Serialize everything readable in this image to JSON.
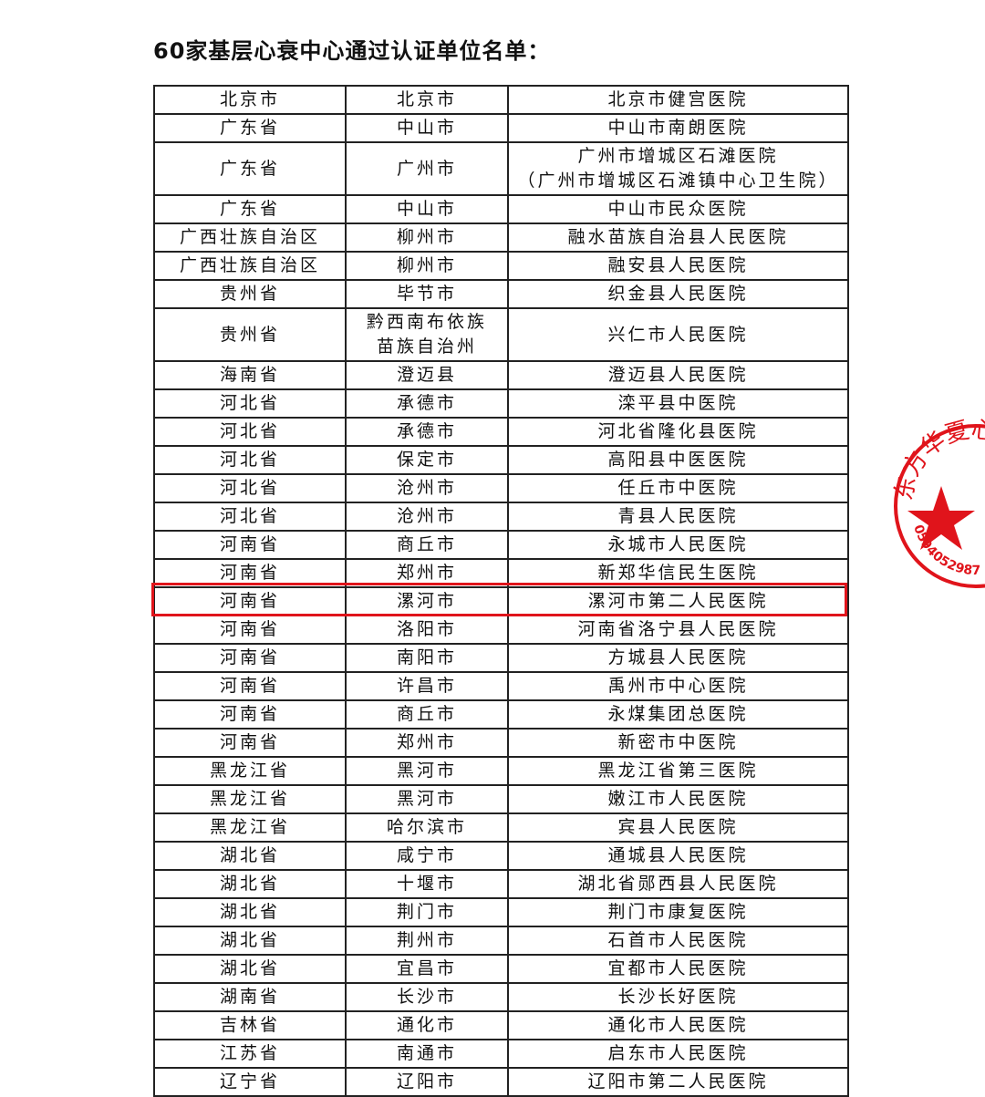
{
  "title": "60家基层心衰中心通过认证单位名单：",
  "highlight_color": "#e0141b",
  "highlighted_row": 16,
  "stamp": {
    "text": "东方华夏心血",
    "number": "0594052987",
    "color": "#e0141b",
    "icon": "star-icon"
  },
  "rows": [
    {
      "province": "北京市",
      "city": "北京市",
      "hospital": "北京市健宫医院"
    },
    {
      "province": "广东省",
      "city": "中山市",
      "hospital": "中山市南朗医院"
    },
    {
      "province": "广东省",
      "city": "广州市",
      "hospital": "广州市增城区石滩医院",
      "hospital_alt": "（广州市增城区石滩镇中心卫生院）"
    },
    {
      "province": "广东省",
      "city": "中山市",
      "hospital": "中山市民众医院"
    },
    {
      "province": "广西壮族自治区",
      "city": "柳州市",
      "hospital": "融水苗族自治县人民医院"
    },
    {
      "province": "广西壮族自治区",
      "city": "柳州市",
      "hospital": "融安县人民医院"
    },
    {
      "province": "贵州省",
      "city": "毕节市",
      "hospital": "织金县人民医院"
    },
    {
      "province": "贵州省",
      "city": "黔西南布依族",
      "city_line2": "苗族自治州",
      "hospital": "兴仁市人民医院"
    },
    {
      "province": "海南省",
      "city": "澄迈县",
      "hospital": "澄迈县人民医院"
    },
    {
      "province": "河北省",
      "city": "承德市",
      "hospital": "滦平县中医院"
    },
    {
      "province": "河北省",
      "city": "承德市",
      "hospital": "河北省隆化县医院"
    },
    {
      "province": "河北省",
      "city": "保定市",
      "hospital": "高阳县中医医院"
    },
    {
      "province": "河北省",
      "city": "沧州市",
      "hospital": "任丘市中医院"
    },
    {
      "province": "河北省",
      "city": "沧州市",
      "hospital": "青县人民医院"
    },
    {
      "province": "河南省",
      "city": "商丘市",
      "hospital": "永城市人民医院"
    },
    {
      "province": "河南省",
      "city": "郑州市",
      "hospital": "新郑华信民生医院"
    },
    {
      "province": "河南省",
      "city": "漯河市",
      "hospital": "漯河市第二人民医院"
    },
    {
      "province": "河南省",
      "city": "洛阳市",
      "hospital": "河南省洛宁县人民医院"
    },
    {
      "province": "河南省",
      "city": "南阳市",
      "hospital": "方城县人民医院"
    },
    {
      "province": "河南省",
      "city": "许昌市",
      "hospital": "禹州市中心医院"
    },
    {
      "province": "河南省",
      "city": "商丘市",
      "hospital": "永煤集团总医院"
    },
    {
      "province": "河南省",
      "city": "郑州市",
      "hospital": "新密市中医院"
    },
    {
      "province": "黑龙江省",
      "city": "黑河市",
      "hospital": "黑龙江省第三医院"
    },
    {
      "province": "黑龙江省",
      "city": "黑河市",
      "hospital": "嫩江市人民医院"
    },
    {
      "province": "黑龙江省",
      "city": "哈尔滨市",
      "hospital": "宾县人民医院"
    },
    {
      "province": "湖北省",
      "city": "咸宁市",
      "hospital": "通城县人民医院"
    },
    {
      "province": "湖北省",
      "city": "十堰市",
      "hospital": "湖北省郧西县人民医院"
    },
    {
      "province": "湖北省",
      "city": "荆门市",
      "hospital": "荆门市康复医院"
    },
    {
      "province": "湖北省",
      "city": "荆州市",
      "hospital": "石首市人民医院"
    },
    {
      "province": "湖北省",
      "city": "宜昌市",
      "hospital": "宜都市人民医院"
    },
    {
      "province": "湖南省",
      "city": "长沙市",
      "hospital": "长沙长好医院"
    },
    {
      "province": "吉林省",
      "city": "通化市",
      "hospital": "通化市人民医院"
    },
    {
      "province": "江苏省",
      "city": "南通市",
      "hospital": "启东市人民医院"
    },
    {
      "province": "辽宁省",
      "city": "辽阳市",
      "hospital": "辽阳市第二人民医院"
    }
  ]
}
